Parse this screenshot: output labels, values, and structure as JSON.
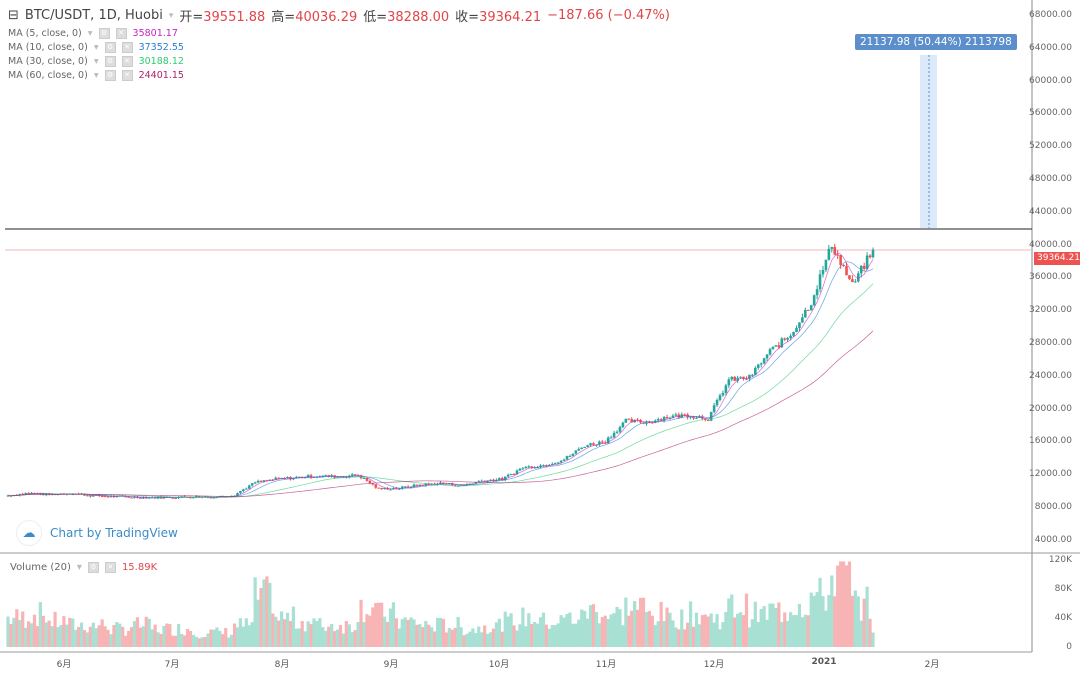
{
  "header": {
    "symbol": "BTC/USDT, 1D, Huobi",
    "open_label": "开=",
    "open": "39551.88",
    "high_label": "高=",
    "high": "40036.29",
    "low_label": "低=",
    "low": "38288.00",
    "close_label": "收=",
    "close": "39364.21",
    "change": "−187.66 (−0.47%)"
  },
  "indicators": [
    {
      "label": "MA (5, close, 0)",
      "value": "35801.17",
      "color": "#c226c2",
      "period": 5
    },
    {
      "label": "MA (10, close, 0)",
      "value": "37352.55",
      "color": "#2a7fd4",
      "period": 10
    },
    {
      "label": "MA (30, close, 0)",
      "value": "30188.12",
      "color": "#2ecc71",
      "period": 30
    },
    {
      "label": "MA (60, close, 0)",
      "value": "24401.15",
      "color": "#b0226e",
      "period": 60
    }
  ],
  "watermark": "Chart by TradingView",
  "measure_label": "21137.98 (50.44%) 2113798",
  "last_price_label": "39364.21",
  "volume": {
    "label": "Volume (20)",
    "value": "15.89K",
    "ticks": [
      "120K",
      "80K",
      "40K",
      "0"
    ]
  },
  "colors": {
    "up": "#26a69a",
    "down": "#ef5350"
  },
  "chart_data": {
    "type": "candlestick",
    "title": "BTC/USDT, 1D, Huobi",
    "ylim": [
      4000,
      68000
    ],
    "yticks": [
      "68000.00",
      "64000.00",
      "60000.00",
      "56000.00",
      "52000.00",
      "48000.00",
      "44000.00",
      "40000.00",
      "36000.00",
      "32000.00",
      "28000.00",
      "24000.00",
      "20000.00",
      "16000.00",
      "12000.00",
      "8000.00",
      "4000.00"
    ],
    "xticks": [
      "6月",
      "7月",
      "8月",
      "9月",
      "10月",
      "11月",
      "12月",
      "2021",
      "2月"
    ],
    "weekly_close": [
      9400,
      9700,
      9500,
      9700,
      9400,
      9300,
      9200,
      9150,
      9200,
      9250,
      9200,
      9500,
      11000,
      11400,
      11600,
      11800,
      11700,
      11900,
      10200,
      10300,
      10700,
      10900,
      10600,
      11200,
      11400,
      12800,
      13100,
      13800,
      15500,
      16000,
      18500,
      18300,
      19000,
      19200,
      18800,
      23500,
      23800,
      27000,
      29000,
      33000,
      40000,
      35000,
      39364
    ],
    "weekly_volume_k": [
      40,
      45,
      35,
      30,
      30,
      25,
      30,
      25,
      25,
      20,
      20,
      30,
      70,
      40,
      35,
      30,
      30,
      55,
      45,
      35,
      30,
      30,
      25,
      30,
      35,
      40,
      35,
      40,
      50,
      45,
      55,
      45,
      40,
      45,
      40,
      55,
      45,
      50,
      60,
      70,
      100,
      60,
      20
    ]
  }
}
